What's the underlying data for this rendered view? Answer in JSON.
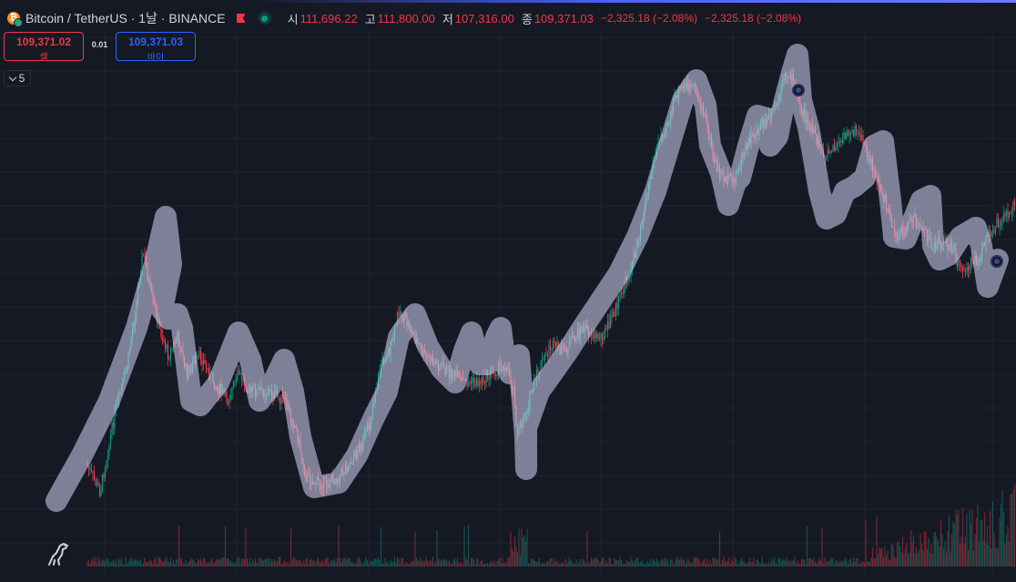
{
  "header": {
    "symbol": "Bitcoin / TetherUS · 1날 · BINANCE",
    "ohlc": [
      {
        "label": "시",
        "value": "111,696.22"
      },
      {
        "label": "고",
        "value": "111,800.00"
      },
      {
        "label": "저",
        "value": "107,316.00"
      },
      {
        "label": "종",
        "value": "109,371.03"
      }
    ],
    "change": "−2,325.18 (−2.08%)",
    "change2": "−2,325.18 (−2.08%)"
  },
  "trade": {
    "sell_price": "109,371.02",
    "sell_label": "셀",
    "spread": "0.01",
    "buy_price": "109,371.03",
    "buy_label": "바이"
  },
  "indicators_toggle": {
    "count": "5"
  },
  "icons": {
    "coin": "bitcoin-icon",
    "flag": "flag-icon",
    "status": "live-status-icon",
    "collapse": "chevron-down-icon",
    "logo": "dinosaur-logo-icon"
  },
  "colors": {
    "up": "#089981",
    "down": "#f23645",
    "buy": "#2962ff",
    "background": "#151924",
    "drawing": "#9d9fbb"
  }
}
